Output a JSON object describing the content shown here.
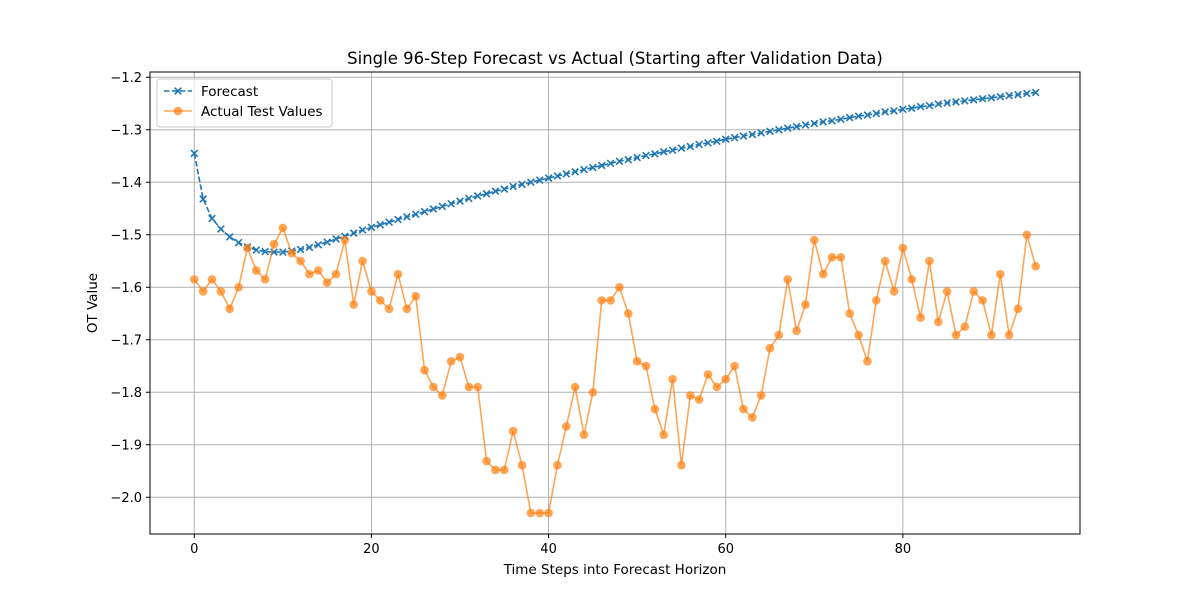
{
  "chart_data": {
    "type": "line",
    "title": "Single 96-Step Forecast vs Actual (Starting after Validation Data)",
    "xlabel": "Time Steps into Forecast Horizon",
    "ylabel": "OT Value",
    "xlim": [
      -5,
      100
    ],
    "ylim": [
      -2.07,
      -1.19
    ],
    "x_ticks": [
      0,
      20,
      40,
      60,
      80
    ],
    "y_ticks": [
      -2.0,
      -1.9,
      -1.8,
      -1.7,
      -1.6,
      -1.5,
      -1.4,
      -1.3,
      -1.2
    ],
    "x_tick_labels": [
      "0",
      "20",
      "40",
      "60",
      "80"
    ],
    "y_tick_labels": [
      "−2.0",
      "−1.9",
      "−1.8",
      "−1.7",
      "−1.6",
      "−1.5",
      "−1.4",
      "−1.3",
      "−1.2"
    ],
    "grid": true,
    "legend_position": "top-left",
    "series": [
      {
        "name": "Forecast",
        "color": "#1f77b4",
        "line_style": "dashed",
        "marker": "x",
        "values": [
          -1.345,
          -1.432,
          -1.469,
          -1.489,
          -1.504,
          -1.515,
          -1.523,
          -1.529,
          -1.532,
          -1.533,
          -1.533,
          -1.531,
          -1.528,
          -1.524,
          -1.519,
          -1.514,
          -1.508,
          -1.503,
          -1.497,
          -1.491,
          -1.486,
          -1.481,
          -1.476,
          -1.471,
          -1.466,
          -1.461,
          -1.456,
          -1.451,
          -1.446,
          -1.441,
          -1.436,
          -1.431,
          -1.426,
          -1.422,
          -1.417,
          -1.413,
          -1.408,
          -1.404,
          -1.4,
          -1.396,
          -1.392,
          -1.388,
          -1.384,
          -1.38,
          -1.376,
          -1.372,
          -1.368,
          -1.364,
          -1.36,
          -1.357,
          -1.353,
          -1.349,
          -1.346,
          -1.342,
          -1.339,
          -1.335,
          -1.332,
          -1.328,
          -1.325,
          -1.322,
          -1.318,
          -1.315,
          -1.312,
          -1.309,
          -1.306,
          -1.303,
          -1.3,
          -1.297,
          -1.294,
          -1.291,
          -1.288,
          -1.285,
          -1.283,
          -1.28,
          -1.277,
          -1.274,
          -1.272,
          -1.269,
          -1.266,
          -1.264,
          -1.261,
          -1.259,
          -1.256,
          -1.254,
          -1.251,
          -1.249,
          -1.247,
          -1.245,
          -1.243,
          -1.241,
          -1.239,
          -1.237,
          -1.235,
          -1.233,
          -1.231,
          -1.229
        ]
      },
      {
        "name": "Actual Test Values",
        "color": "#ff7f0e",
        "line_style": "solid",
        "marker": "o",
        "values": [
          -1.585,
          -1.608,
          -1.585,
          -1.608,
          -1.641,
          -1.6,
          -1.525,
          -1.568,
          -1.585,
          -1.518,
          -1.487,
          -1.535,
          -1.55,
          -1.575,
          -1.568,
          -1.591,
          -1.575,
          -1.51,
          -1.633,
          -1.55,
          -1.608,
          -1.625,
          -1.641,
          -1.575,
          -1.641,
          -1.617,
          -1.758,
          -1.79,
          -1.806,
          -1.741,
          -1.733,
          -1.79,
          -1.79,
          -1.931,
          -1.948,
          -1.948,
          -1.874,
          -1.939,
          -2.03,
          -2.03,
          -2.03,
          -1.939,
          -1.865,
          -1.79,
          -1.881,
          -1.8,
          -1.625,
          -1.625,
          -1.6,
          -1.65,
          -1.741,
          -1.75,
          -1.832,
          -1.881,
          -1.775,
          -1.939,
          -1.806,
          -1.814,
          -1.766,
          -1.79,
          -1.775,
          -1.75,
          -1.832,
          -1.848,
          -1.806,
          -1.716,
          -1.691,
          -1.585,
          -1.683,
          -1.633,
          -1.51,
          -1.575,
          -1.543,
          -1.543,
          -1.65,
          -1.691,
          -1.741,
          -1.625,
          -1.55,
          -1.608,
          -1.525,
          -1.585,
          -1.658,
          -1.55,
          -1.666,
          -1.608,
          -1.691,
          -1.675,
          -1.608,
          -1.625,
          -1.691,
          -1.575,
          -1.691,
          -1.641,
          -1.5,
          -1.56
        ]
      }
    ]
  }
}
